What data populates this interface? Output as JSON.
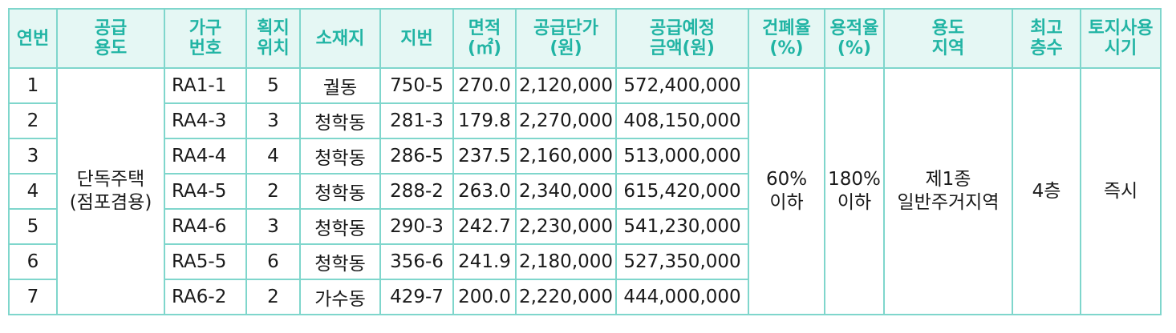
{
  "headers": [
    "연번",
    "공급\n용도",
    "가구\n번호",
    "획지\n위치",
    "소재지",
    "지번",
    "면적\n(㎡)",
    "공급단가\n(원)",
    "공급예정\n금액(원)",
    "건폐율\n(%)",
    "용적율\n(%)",
    "용도\n지역",
    "최고\n층수",
    "토지사용\n시기"
  ],
  "merged": {
    "supply_use": "단독주택\n(점포겸용)",
    "coverage_ratio": "60%\n이하",
    "floor_area_ratio": "180%\n이하",
    "zone": "제1종\n일반주거지역",
    "max_floors": "4층",
    "land_use_time": "즉시"
  },
  "rows": [
    {
      "no": "1",
      "block": "RA1-1",
      "lot": "5",
      "location": "궐동",
      "jibun": "750-5",
      "area": "270.0",
      "unit_price": "2,120,000",
      "amount": "572,400,000"
    },
    {
      "no": "2",
      "block": "RA4-3",
      "lot": "3",
      "location": "청학동",
      "jibun": "281-3",
      "area": "179.8",
      "unit_price": "2,270,000",
      "amount": "408,150,000"
    },
    {
      "no": "3",
      "block": "RA4-4",
      "lot": "4",
      "location": "청학동",
      "jibun": "286-5",
      "area": "237.5",
      "unit_price": "2,160,000",
      "amount": "513,000,000"
    },
    {
      "no": "4",
      "block": "RA4-5",
      "lot": "2",
      "location": "청학동",
      "jibun": "288-2",
      "area": "263.0",
      "unit_price": "2,340,000",
      "amount": "615,420,000"
    },
    {
      "no": "5",
      "block": "RA4-6",
      "lot": "3",
      "location": "청학동",
      "jibun": "290-3",
      "area": "242.7",
      "unit_price": "2,230,000",
      "amount": "541,230,000"
    },
    {
      "no": "6",
      "block": "RA5-5",
      "lot": "6",
      "location": "청학동",
      "jibun": "356-6",
      "area": "241.9",
      "unit_price": "2,180,000",
      "amount": "527,350,000"
    },
    {
      "no": "7",
      "block": "RA6-2",
      "lot": "2",
      "location": "가수동",
      "jibun": "429-7",
      "area": "200.0",
      "unit_price": "2,220,000",
      "amount": "444,000,000"
    }
  ],
  "colors": {
    "header_bg": "#e5f7f4",
    "header_text": "#21b4a4",
    "border": "#7fd6cc"
  }
}
